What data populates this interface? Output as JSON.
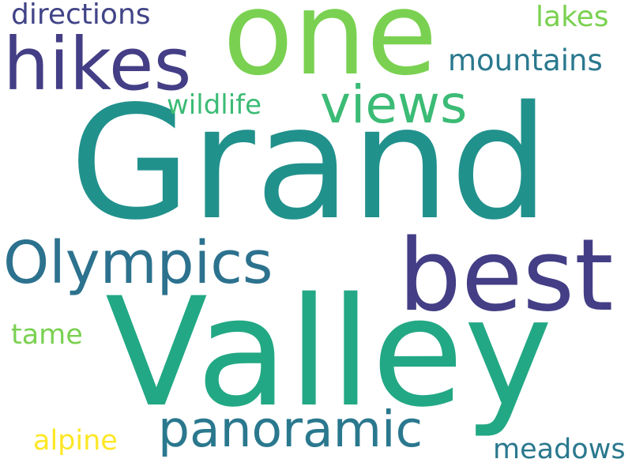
{
  "words": [
    {
      "id": "grand",
      "text": "Grand",
      "color": "#21918c"
    },
    {
      "id": "valley",
      "text": "Valley",
      "color": "#22a884"
    },
    {
      "id": "one",
      "text": "one",
      "color": "#7ad151"
    },
    {
      "id": "hikes",
      "text": "hikes",
      "color": "#433e85"
    },
    {
      "id": "best",
      "text": "best",
      "color": "#433e85"
    },
    {
      "id": "views",
      "text": "views",
      "color": "#3bbb75"
    },
    {
      "id": "olympics",
      "text": "Olympics",
      "color": "#2c728e"
    },
    {
      "id": "panoramic",
      "text": "panoramic",
      "color": "#2a788e"
    },
    {
      "id": "mountains",
      "text": "mountains",
      "color": "#2a788e"
    },
    {
      "id": "directions",
      "text": "directions",
      "color": "#414487"
    },
    {
      "id": "lakes",
      "text": "lakes",
      "color": "#7ad151"
    },
    {
      "id": "wildlife",
      "text": "wildlife",
      "color": "#3bbb75"
    },
    {
      "id": "tame",
      "text": "tame",
      "color": "#7ad151"
    },
    {
      "id": "alpine",
      "text": "alpine",
      "color": "#fde725"
    },
    {
      "id": "meadows",
      "text": "meadows",
      "color": "#2a788e"
    }
  ]
}
